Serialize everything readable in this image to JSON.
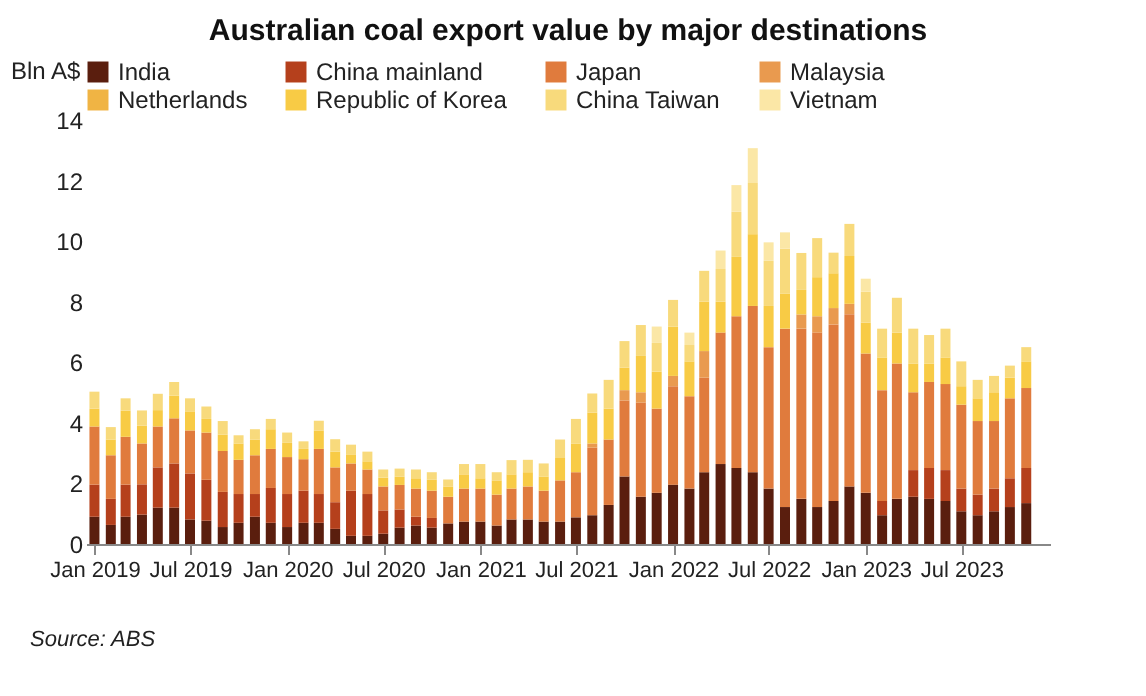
{
  "chart_data": {
    "type": "bar",
    "stacked": true,
    "title": "Australian coal export value by major destinations",
    "ylabel": "Bln A$",
    "x": [
      "2019-01",
      "2019-02",
      "2019-03",
      "2019-04",
      "2019-05",
      "2019-06",
      "2019-07",
      "2019-08",
      "2019-09",
      "2019-10",
      "2019-11",
      "2019-12",
      "2020-01",
      "2020-02",
      "2020-03",
      "2020-04",
      "2020-05",
      "2020-06",
      "2020-07",
      "2020-08",
      "2020-09",
      "2020-10",
      "2020-11",
      "2020-12",
      "2021-01",
      "2021-02",
      "2021-03",
      "2021-04",
      "2021-05",
      "2021-06",
      "2021-07",
      "2021-08",
      "2021-09",
      "2021-10",
      "2021-11",
      "2021-12",
      "2022-01",
      "2022-02",
      "2022-03",
      "2022-04",
      "2022-05",
      "2022-06",
      "2022-07",
      "2022-08",
      "2022-09",
      "2022-10",
      "2022-11",
      "2022-12",
      "2023-01",
      "2023-02",
      "2023-03",
      "2023-04",
      "2023-05",
      "2023-06",
      "2023-07",
      "2023-08",
      "2023-09",
      "2023-10",
      "2023-11"
    ],
    "xlim": [
      "2018-12-16",
      "2023-12-16"
    ],
    "xticks": [
      {
        "value": "2019-01",
        "label": "Jan 2019"
      },
      {
        "value": "2019-07",
        "label": "Jul 2019"
      },
      {
        "value": "2020-01",
        "label": "Jan 2020"
      },
      {
        "value": "2020-07",
        "label": "Jul 2020"
      },
      {
        "value": "2021-01",
        "label": "Jan 2021"
      },
      {
        "value": "2021-07",
        "label": "Jul 2021"
      },
      {
        "value": "2022-01",
        "label": "Jan 2022"
      },
      {
        "value": "2022-07",
        "label": "Jul 2022"
      },
      {
        "value": "2023-01",
        "label": "Jan 2023"
      },
      {
        "value": "2023-07",
        "label": "Jul 2023"
      }
    ],
    "ylim": [
      0,
      14
    ],
    "yticks": [
      0,
      2,
      4,
      6,
      8,
      10,
      12,
      14
    ],
    "grid": false,
    "legend": "top",
    "series": [
      {
        "name": "India",
        "color": "#5a1e0e",
        "values": [
          0.9,
          0.63,
          0.9,
          0.97,
          1.2,
          1.2,
          0.81,
          0.77,
          0.56,
          0.7,
          0.9,
          0.7,
          0.56,
          0.7,
          0.7,
          0.5,
          0.27,
          0.27,
          0.34,
          0.54,
          0.61,
          0.54,
          0.68,
          0.74,
          0.74,
          0.61,
          0.81,
          0.81,
          0.74,
          0.74,
          0.88,
          0.95,
          1.29,
          2.23,
          1.56,
          1.69,
          1.96,
          1.83,
          2.37,
          2.64,
          2.51,
          2.37,
          1.83,
          1.22,
          1.49,
          1.22,
          1.42,
          1.9,
          1.69,
          0.95,
          1.49,
          1.56,
          1.49,
          1.42,
          1.08,
          0.95,
          1.08,
          1.22,
          1.35
        ]
      },
      {
        "name": "China mainland",
        "color": "#b5401c",
        "values": [
          1.06,
          0.86,
          1.06,
          1.0,
          1.33,
          1.46,
          1.52,
          1.35,
          1.16,
          0.95,
          0.75,
          1.15,
          1.09,
          1.06,
          0.95,
          0.88,
          1.49,
          1.38,
          0.77,
          0.6,
          0.29,
          0.32,
          0,
          0,
          0,
          0,
          0,
          0,
          0,
          0,
          0,
          0,
          0,
          0,
          0,
          0,
          0,
          0,
          0,
          0,
          0,
          0,
          0,
          0,
          0,
          0,
          0,
          0,
          0,
          0.47,
          0,
          0.88,
          1.02,
          1.02,
          0.75,
          0.68,
          0.75,
          0.95,
          1.16
        ]
      },
      {
        "name": "Japan",
        "color": "#e07b3d",
        "values": [
          1.92,
          1.44,
          1.58,
          1.35,
          1.35,
          1.49,
          1.42,
          1.56,
          1.35,
          1.13,
          1.28,
          1.29,
          1.22,
          1.04,
          1.49,
          1.15,
          0.9,
          0.81,
          0.79,
          0.81,
          0.93,
          0.9,
          0.88,
          1.09,
          1.09,
          1.02,
          1.02,
          1.09,
          1.02,
          1.36,
          1.49,
          2.23,
          2.16,
          2.51,
          3.11,
          2.78,
          3.25,
          3.05,
          3.12,
          4.34,
          5.01,
          5.49,
          4.67,
          5.89,
          5.62,
          5.76,
          5.83,
          5.69,
          4.6,
          3.66,
          4.47,
          2.57,
          2.84,
          2.84,
          2.77,
          2.43,
          2.23,
          2.64,
          2.64
        ]
      },
      {
        "name": "Malaysia",
        "color": "#e99a4f",
        "values": [
          0,
          0,
          0,
          0,
          0,
          0,
          0,
          0,
          0,
          0,
          0,
          0,
          0,
          0,
          0,
          0,
          0,
          0,
          0,
          0,
          0,
          0,
          0,
          0,
          0,
          0,
          0,
          0,
          0,
          0,
          0,
          0.14,
          0,
          0.34,
          0.34,
          0,
          0.34,
          0,
          0.88,
          0,
          0,
          0,
          0,
          0,
          0.47,
          0.54,
          0.54,
          0.34,
          0,
          0,
          0,
          0,
          0,
          0,
          0,
          0,
          0,
          0,
          0
        ]
      },
      {
        "name": "Netherlands",
        "color": "#f0b444",
        "values": [
          0,
          0,
          0,
          0,
          0,
          0,
          0,
          0,
          0,
          0,
          0,
          0,
          0,
          0,
          0,
          0,
          0,
          0,
          0,
          0,
          0,
          0,
          0,
          0,
          0,
          0,
          0,
          0,
          0,
          0,
          0,
          0,
          0,
          0,
          0,
          0,
          0,
          0,
          0,
          0,
          0,
          0,
          0,
          0,
          0,
          0,
          0,
          0,
          0,
          0,
          0,
          0,
          0,
          0,
          0,
          0,
          0,
          0,
          0
        ]
      },
      {
        "name": "Republic of Korea",
        "color": "#f8cb45",
        "values": [
          0.59,
          0.52,
          0.86,
          0.59,
          0.54,
          0.75,
          0.63,
          0.45,
          0.54,
          0.54,
          0.52,
          0.65,
          0.47,
          0.34,
          0.61,
          0.52,
          0.3,
          0.27,
          0.29,
          0.27,
          0.34,
          0.36,
          0.34,
          0.47,
          0.34,
          0.47,
          0.47,
          0.47,
          0.47,
          0.74,
          0.95,
          1.02,
          1.02,
          0.74,
          1.2,
          1.22,
          1.63,
          1.15,
          1.63,
          1.02,
          1.96,
          2.37,
          1.36,
          1.15,
          0.81,
          1.29,
          1.15,
          1.58,
          1.02,
          1.08,
          1.02,
          0.95,
          0.61,
          0.88,
          0.61,
          0.75,
          0.95,
          0.68,
          0.88
        ]
      },
      {
        "name": "China Taiwan",
        "color": "#f8da7c",
        "values": [
          0.56,
          0.41,
          0.41,
          0.5,
          0.54,
          0.45,
          0.43,
          0.41,
          0.45,
          0.27,
          0.34,
          0.34,
          0.34,
          0.25,
          0.32,
          0.41,
          0.32,
          0.32,
          0.27,
          0.27,
          0.29,
          0.25,
          0.23,
          0.34,
          0.47,
          0.27,
          0.47,
          0.41,
          0.43,
          0.61,
          0.81,
          0.63,
          0.95,
          0.88,
          1.02,
          0.95,
          0.88,
          0.54,
          1.02,
          1.08,
          1.49,
          1.69,
          1.49,
          1.49,
          1.22,
          1.29,
          0.68,
          1.06,
          1.02,
          0.95,
          1.15,
          1.15,
          0.94,
          0.95,
          0.82,
          0.61,
          0.54,
          0.4,
          0.47
        ]
      },
      {
        "name": "Vietnam",
        "color": "#fbe7a6",
        "values": [
          0,
          0,
          0,
          0,
          0,
          0,
          0,
          0,
          0,
          0,
          0,
          0,
          0,
          0,
          0,
          0,
          0,
          0,
          0,
          0,
          0,
          0,
          0,
          0,
          0,
          0,
          0,
          0,
          0,
          0,
          0,
          0,
          0,
          0,
          0,
          0.54,
          0,
          0.41,
          0,
          0.61,
          0.88,
          1.15,
          0.61,
          0.54,
          0,
          0,
          0,
          0,
          0.43,
          0,
          0,
          0,
          0,
          0,
          0,
          0,
          0,
          0,
          0
        ]
      }
    ],
    "annotations": [
      "Source: ABS"
    ]
  }
}
